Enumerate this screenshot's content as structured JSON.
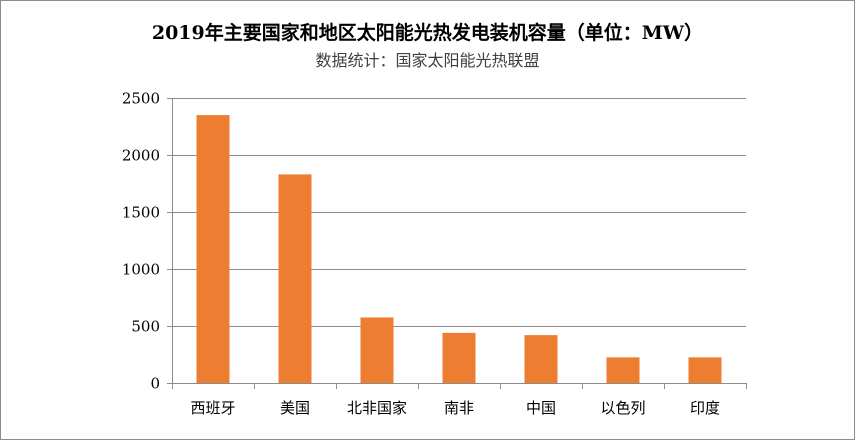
{
  "chart_data": {
    "type": "bar",
    "title": "2019年主要国家和地区太阳能光热发电装机容量（单位：MW）",
    "subtitle": "数据统计：国家太阳能光热联盟",
    "xlabel": "",
    "ylabel": "",
    "categories": [
      "西班牙",
      "美国",
      "北非国家",
      "南非",
      "中国",
      "以色列",
      "印度"
    ],
    "values": [
      2350,
      1830,
      575,
      440,
      420,
      225,
      225
    ],
    "ylim": [
      0,
      2500
    ],
    "yticks": [
      0,
      500,
      1000,
      1500,
      2000,
      2500
    ],
    "grid": true,
    "legend": "none"
  },
  "colors": {
    "bar": "#ED7D31",
    "grid": "#8C8C8C",
    "axis": "#8C8C8C"
  }
}
